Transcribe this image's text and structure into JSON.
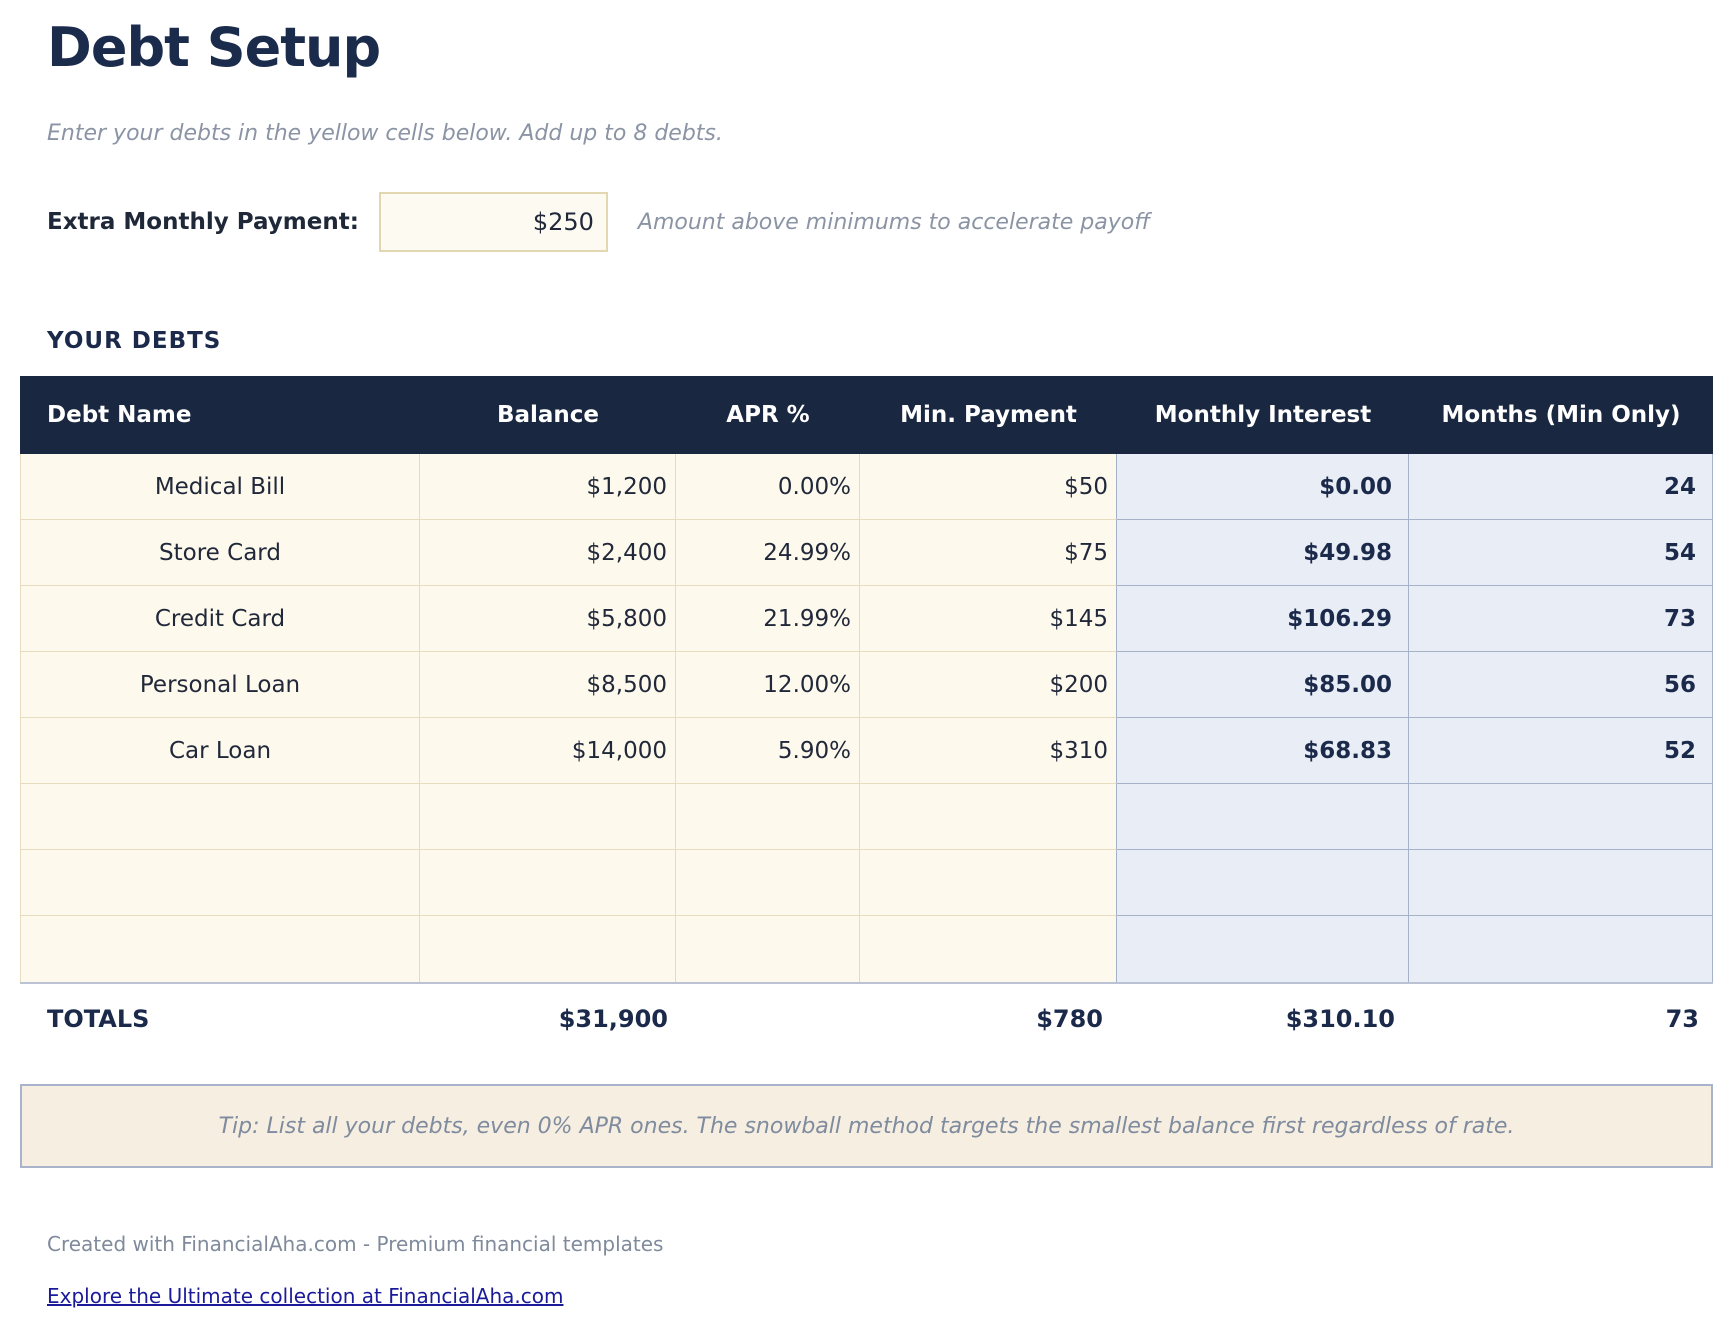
{
  "page": {
    "title": "Debt Setup",
    "subtitle": "Enter your debts in the yellow cells below. Add up to 8 debts."
  },
  "extra_payment": {
    "label": "Extra Monthly Payment:",
    "value": "$250",
    "note": "Amount above minimums to accelerate payoff"
  },
  "debts_section": {
    "heading": "YOUR DEBTS"
  },
  "table": {
    "columns": [
      "Debt Name",
      "Balance",
      "APR %",
      "Min. Payment",
      "Monthly Interest",
      "Months (Min Only)"
    ],
    "rows": [
      {
        "name": "Medical Bill",
        "balance": "$1,200",
        "apr": "0.00%",
        "min_payment": "$50",
        "monthly_interest": "$0.00",
        "months": "24"
      },
      {
        "name": "Store Card",
        "balance": "$2,400",
        "apr": "24.99%",
        "min_payment": "$75",
        "monthly_interest": "$49.98",
        "months": "54"
      },
      {
        "name": "Credit Card",
        "balance": "$5,800",
        "apr": "21.99%",
        "min_payment": "$145",
        "monthly_interest": "$106.29",
        "months": "73"
      },
      {
        "name": "Personal Loan",
        "balance": "$8,500",
        "apr": "12.00%",
        "min_payment": "$200",
        "monthly_interest": "$85.00",
        "months": "56"
      },
      {
        "name": "Car Loan",
        "balance": "$14,000",
        "apr": "5.90%",
        "min_payment": "$310",
        "monthly_interest": "$68.83",
        "months": "52"
      },
      {
        "name": "",
        "balance": "",
        "apr": "",
        "min_payment": "",
        "monthly_interest": "",
        "months": ""
      },
      {
        "name": "",
        "balance": "",
        "apr": "",
        "min_payment": "",
        "monthly_interest": "",
        "months": ""
      },
      {
        "name": "",
        "balance": "",
        "apr": "",
        "min_payment": "",
        "monthly_interest": "",
        "months": ""
      }
    ],
    "totals": {
      "label": "TOTALS",
      "balance": "$31,900",
      "min_payment": "$780",
      "monthly_interest": "$310.10",
      "months": "73"
    }
  },
  "tip": {
    "text": "Tip: List all your debts, even 0% APR ones. The snowball method targets the smallest balance first regardless of rate."
  },
  "footer": {
    "credit": "Created with FinancialAha.com - Premium financial templates",
    "link": "Explore the Ultimate collection at FinancialAha.com"
  },
  "colors": {
    "navy_header": "#1a2740",
    "navy_text": "#1b2a4a",
    "yellow_cell": "#fdf9ec",
    "yellow_border": "#e7ddbe",
    "blue_cell": "#e9edf6",
    "blue_border": "#a6b1ca",
    "tip_background": "#f5eee1",
    "tip_border": "#a9b3cb",
    "link_blue": "#1b1b9a"
  }
}
